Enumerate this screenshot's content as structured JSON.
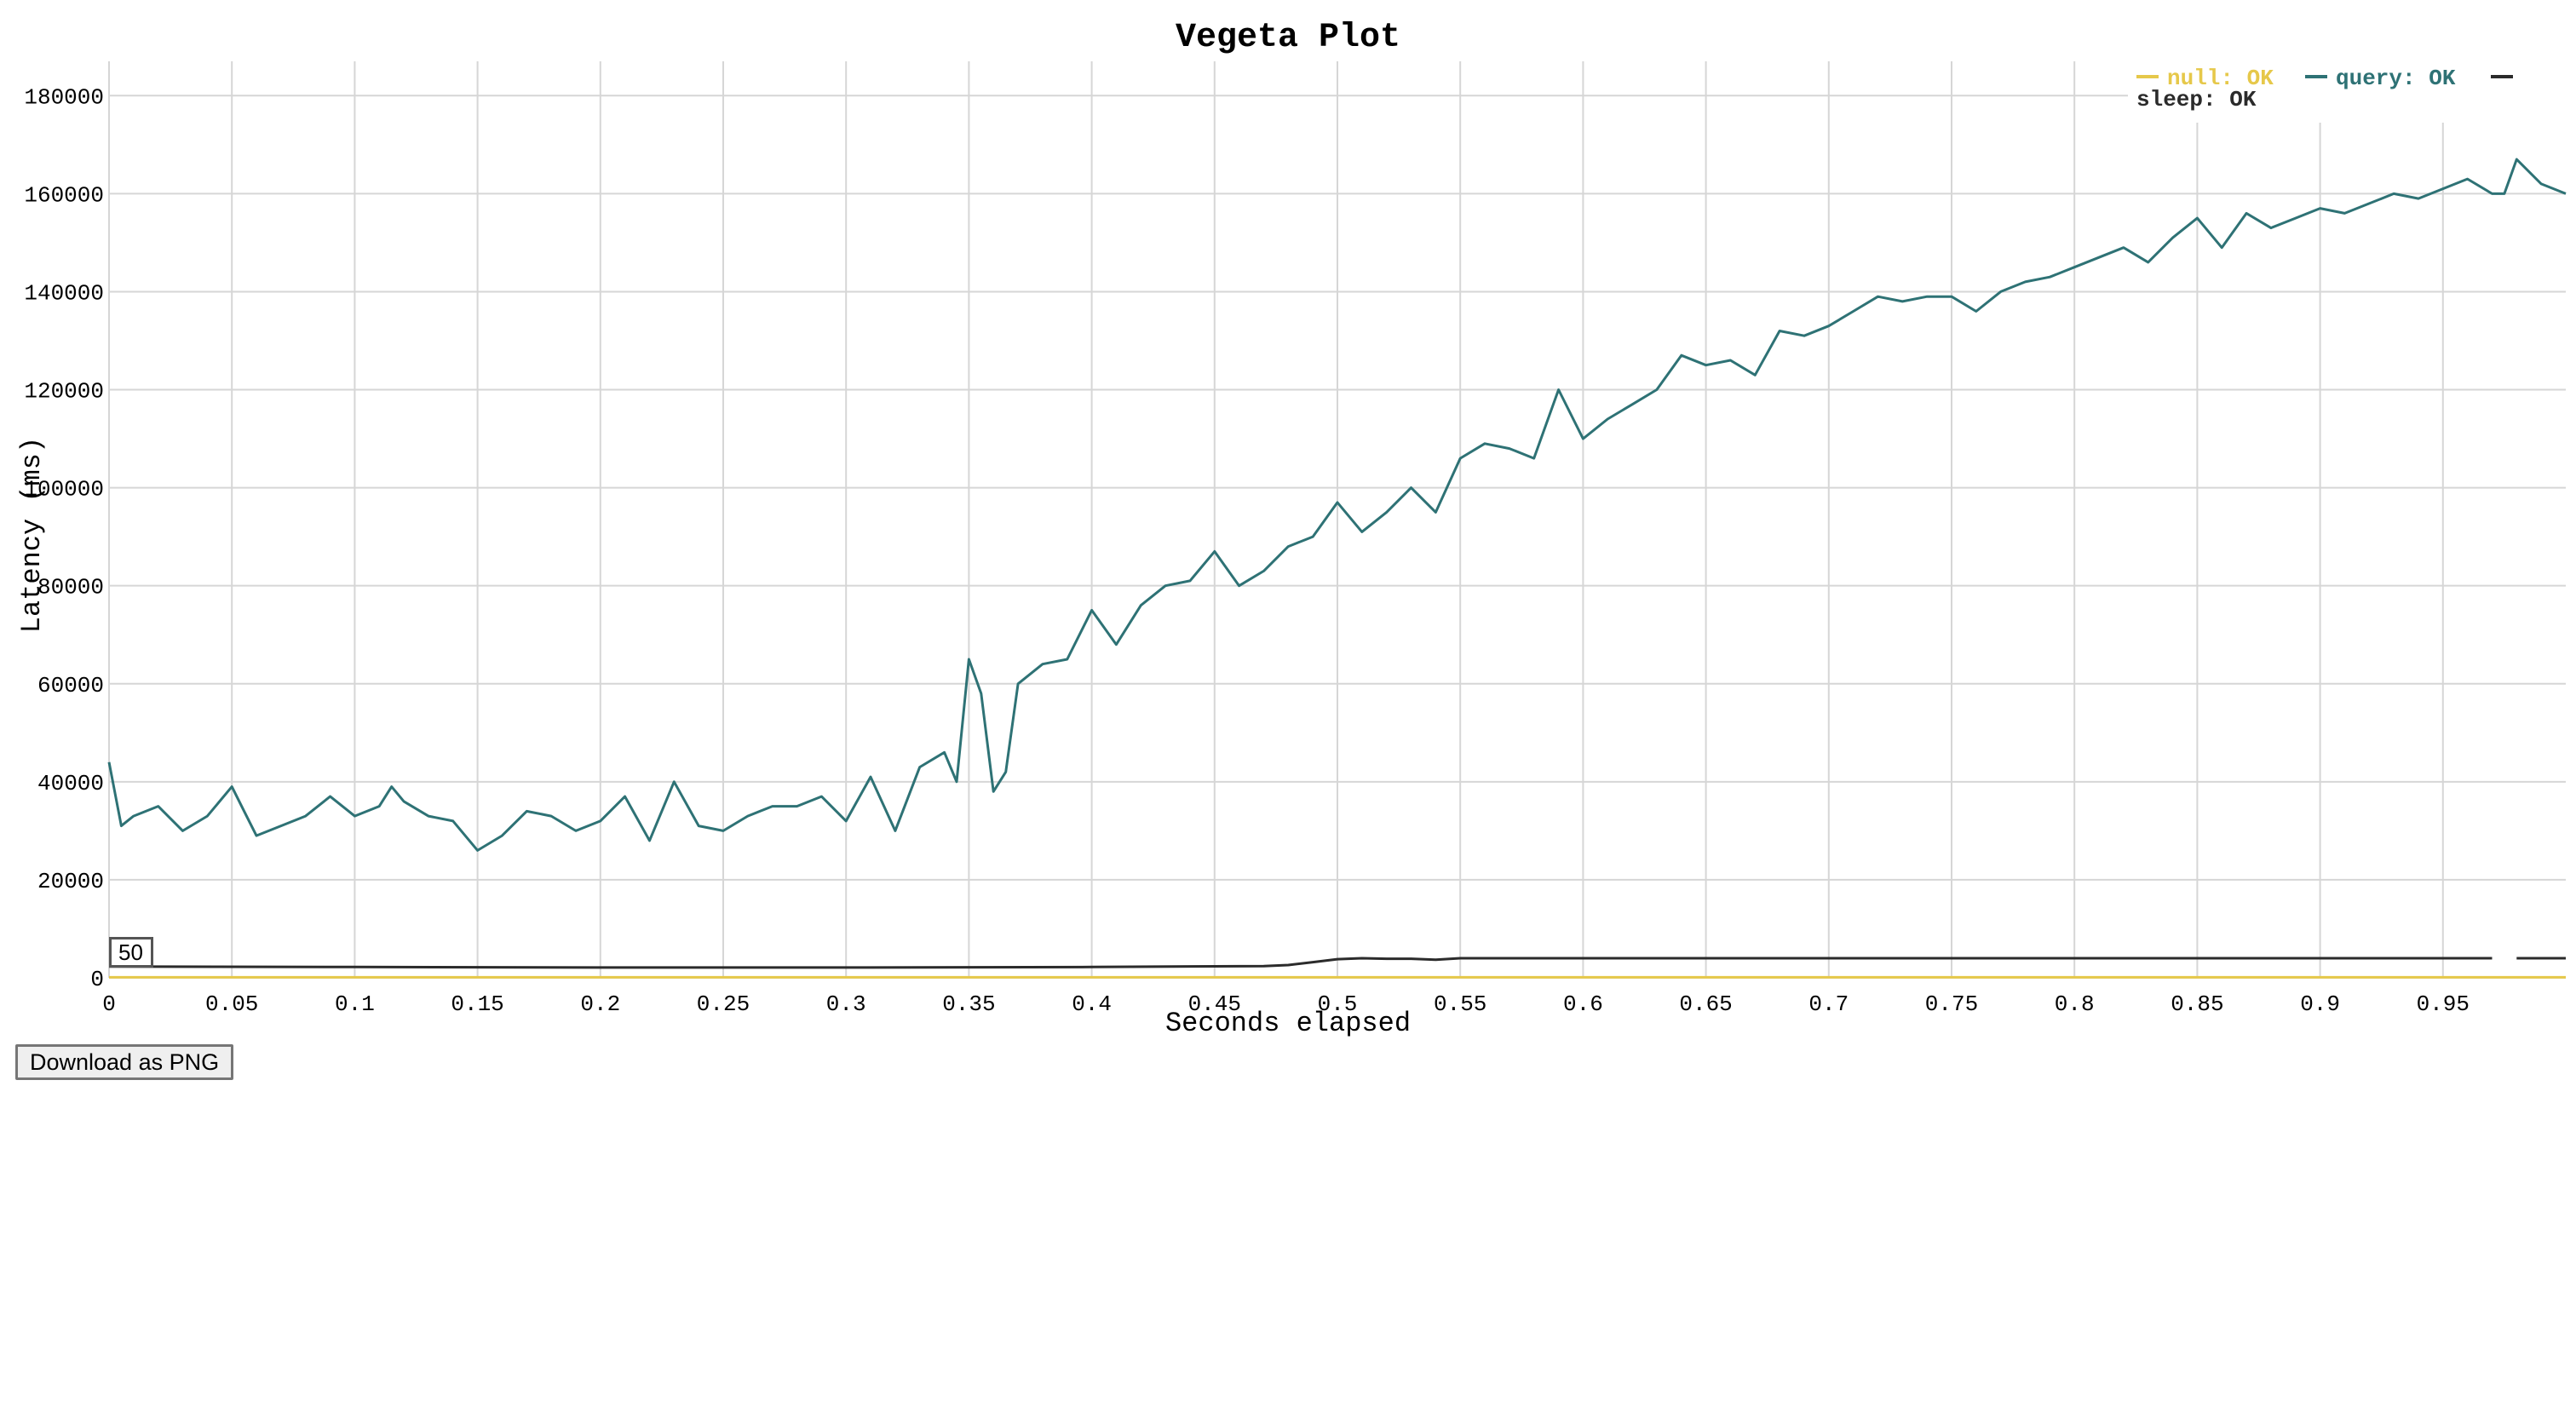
{
  "download_button_label": "Download as PNG",
  "roller_value": "50",
  "chart_data": {
    "type": "line",
    "title": "Vegeta Plot",
    "xlabel": "Seconds elapsed",
    "ylabel": "Latency (ms)",
    "xlim": [
      0,
      1.0
    ],
    "ylim": [
      0,
      187000
    ],
    "x_ticks": [
      0,
      0.05,
      0.1,
      0.15,
      0.2,
      0.25,
      0.3,
      0.35,
      0.4,
      0.45,
      0.5,
      0.55,
      0.6,
      0.65,
      0.7,
      0.75,
      0.8,
      0.85,
      0.9,
      0.95
    ],
    "x_tick_labels": [
      "0",
      "0.05",
      "0.1",
      "0.15",
      "0.2",
      "0.25",
      "0.3",
      "0.35",
      "0.4",
      "0.45",
      "0.5",
      "0.55",
      "0.6",
      "0.65",
      "0.7",
      "0.75",
      "0.8",
      "0.85",
      "0.9",
      "0.95"
    ],
    "y_ticks": [
      0,
      20000,
      40000,
      60000,
      80000,
      100000,
      120000,
      140000,
      160000,
      180000
    ],
    "y_tick_labels": [
      "0",
      "20000",
      "40000",
      "60000",
      "80000",
      "100000",
      "120000",
      "140000",
      "160000",
      "180000"
    ],
    "grid": true,
    "legend_position": "top-right",
    "series": [
      {
        "name": "null: OK",
        "color": "#e6c84a",
        "x": [
          0,
          0.25,
          0.5,
          0.75,
          1.0
        ],
        "y": [
          100,
          100,
          100,
          100,
          100
        ]
      },
      {
        "name": "query: OK",
        "color": "#2e7275",
        "x": [
          0,
          0.005,
          0.01,
          0.02,
          0.03,
          0.04,
          0.05,
          0.055,
          0.06,
          0.07,
          0.08,
          0.09,
          0.1,
          0.11,
          0.115,
          0.12,
          0.13,
          0.14,
          0.15,
          0.16,
          0.17,
          0.18,
          0.19,
          0.2,
          0.21,
          0.22,
          0.23,
          0.24,
          0.25,
          0.26,
          0.27,
          0.28,
          0.29,
          0.3,
          0.31,
          0.32,
          0.33,
          0.34,
          0.345,
          0.35,
          0.355,
          0.36,
          0.365,
          0.37,
          0.38,
          0.39,
          0.4,
          0.41,
          0.42,
          0.43,
          0.44,
          0.45,
          0.46,
          0.47,
          0.48,
          0.49,
          0.5,
          0.51,
          0.52,
          0.53,
          0.54,
          0.55,
          0.56,
          0.57,
          0.58,
          0.59,
          0.6,
          0.61,
          0.62,
          0.63,
          0.64,
          0.65,
          0.66,
          0.67,
          0.68,
          0.69,
          0.7,
          0.71,
          0.72,
          0.73,
          0.74,
          0.75,
          0.76,
          0.77,
          0.78,
          0.79,
          0.8,
          0.81,
          0.82,
          0.83,
          0.84,
          0.85,
          0.86,
          0.87,
          0.88,
          0.89,
          0.9,
          0.91,
          0.92,
          0.93,
          0.94,
          0.95,
          0.96,
          0.97,
          0.975,
          0.98,
          0.99,
          1.0
        ],
        "y": [
          44000,
          31000,
          33000,
          35000,
          30000,
          33000,
          39000,
          34000,
          29000,
          31000,
          33000,
          37000,
          33000,
          35000,
          39000,
          36000,
          33000,
          32000,
          26000,
          29000,
          34000,
          33000,
          30000,
          32000,
          37000,
          28000,
          40000,
          31000,
          30000,
          33000,
          35000,
          35000,
          37000,
          32000,
          41000,
          30000,
          43000,
          46000,
          40000,
          65000,
          58000,
          38000,
          42000,
          60000,
          64000,
          65000,
          75000,
          68000,
          76000,
          80000,
          81000,
          87000,
          80000,
          83000,
          88000,
          90000,
          97000,
          91000,
          95000,
          100000,
          95000,
          106000,
          109000,
          108000,
          106000,
          120000,
          110000,
          114000,
          117000,
          120000,
          127000,
          125000,
          126000,
          123000,
          132000,
          131000,
          133000,
          136000,
          139000,
          138000,
          139000,
          139000,
          136000,
          140000,
          142000,
          143000,
          145000,
          147000,
          149000,
          146000,
          151000,
          155000,
          149000,
          156000,
          153000,
          155000,
          157000,
          156000,
          158000,
          160000,
          159000,
          161000,
          163000,
          160000,
          160000,
          167000,
          162000,
          160000
        ]
      },
      {
        "name": "sleep: OK",
        "color": "#2b2b2b",
        "x": [
          0,
          0.1,
          0.2,
          0.3,
          0.4,
          0.47,
          0.48,
          0.49,
          0.5,
          0.51,
          0.52,
          0.53,
          0.54,
          0.55,
          0.6,
          0.7,
          0.8,
          0.9,
          0.97,
          0.975,
          0.98,
          1.0
        ],
        "y": [
          2300,
          2200,
          2100,
          2100,
          2200,
          2400,
          2600,
          3200,
          3800,
          4000,
          3900,
          3900,
          3700,
          4000,
          4000,
          4000,
          4000,
          4000,
          4000,
          null,
          4000,
          4000
        ]
      }
    ]
  }
}
